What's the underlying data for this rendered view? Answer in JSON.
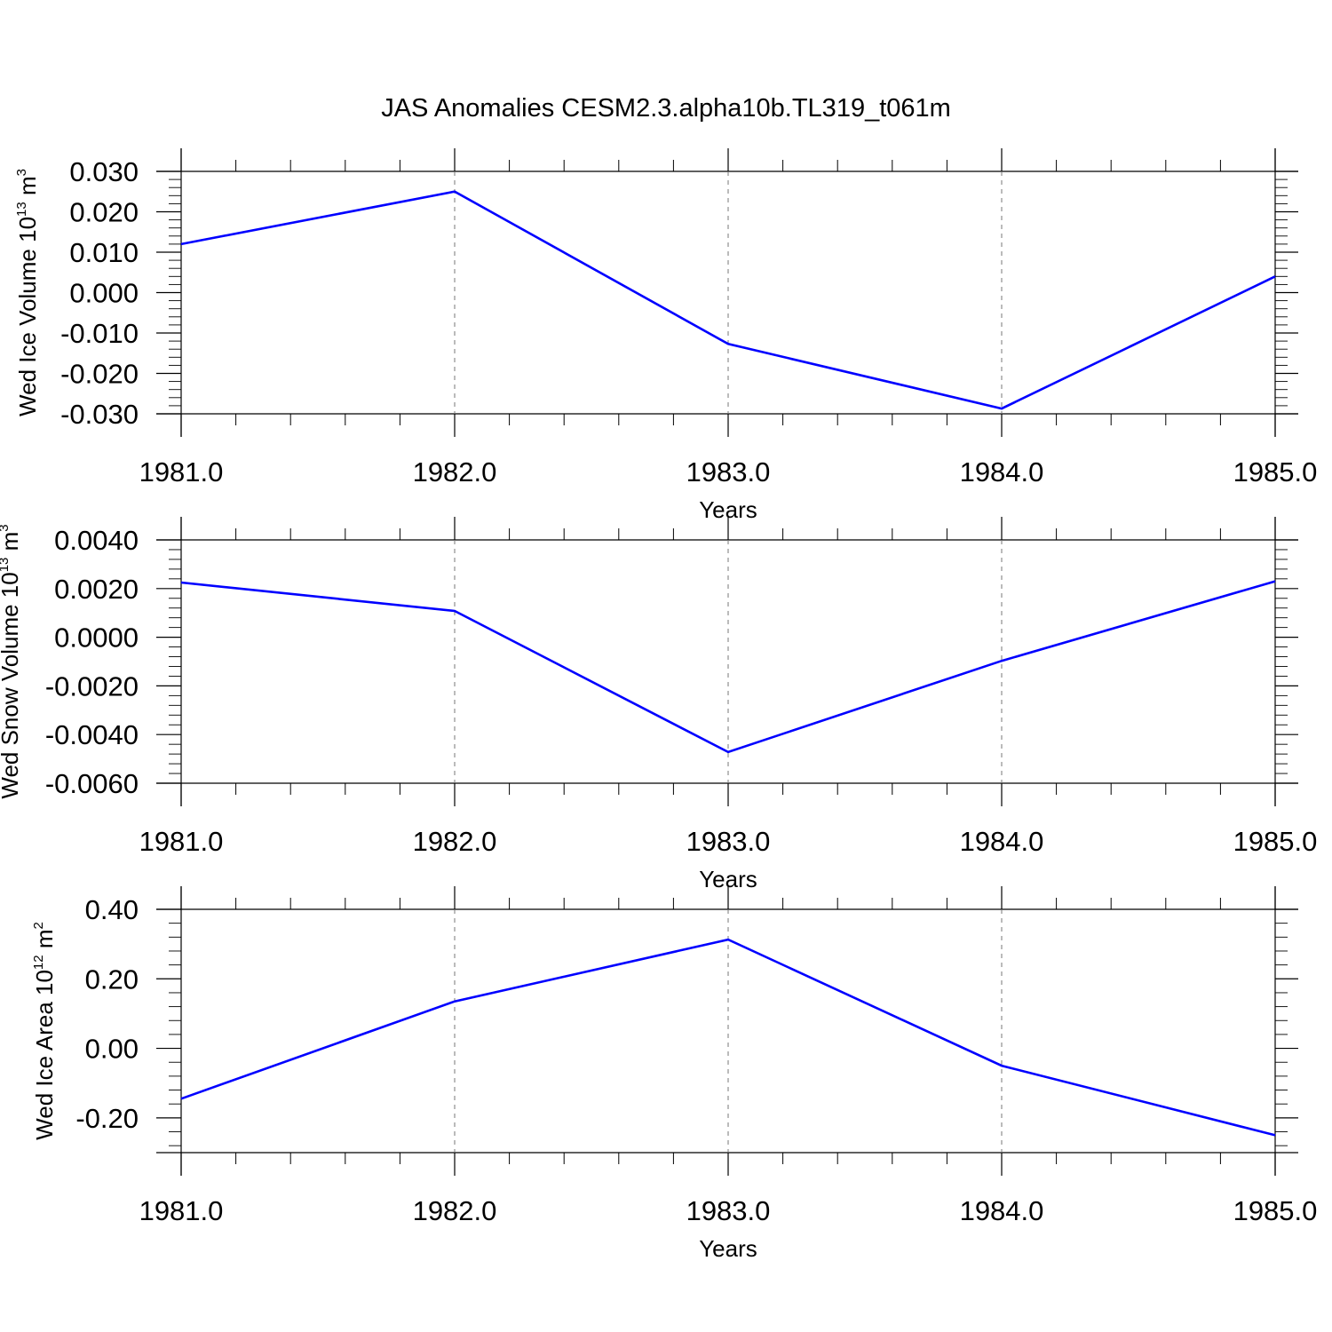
{
  "figure": {
    "title": "JAS Anomalies CESM2.3.alpha10b.TL319_t061m"
  },
  "chart_data": [
    {
      "type": "line",
      "title": "",
      "xlabel": "Years",
      "ylabel": {
        "text": "Wed Ice Volume 10",
        "sup": "13",
        "unit": " m",
        "unit_sup": "3"
      },
      "xlim": [
        1981,
        1985
      ],
      "ylim": [
        -0.03,
        0.03
      ],
      "x_ticks": [
        1981,
        1982,
        1983,
        1984,
        1985
      ],
      "x_tick_labels": [
        "1981.0",
        "1982.0",
        "1983.0",
        "1984.0",
        "1985.0"
      ],
      "y_ticks": [
        0.03,
        0.02,
        0.01,
        0.0,
        -0.01,
        -0.02,
        -0.03
      ],
      "y_tick_labels": [
        "0.030",
        "0.020",
        "0.010",
        "0.000",
        "-0.010",
        "-0.020",
        "-0.030"
      ],
      "y_minor_step": 0.002,
      "x_minor_step": 0.2,
      "grid": "vertical dashed at major x ticks",
      "color": "#0000ff",
      "x": [
        1981,
        1982,
        1983,
        1984,
        1985
      ],
      "y": [
        0.012,
        0.025,
        -0.0127,
        -0.0287,
        0.004
      ]
    },
    {
      "type": "line",
      "title": "",
      "xlabel": "Years",
      "ylabel": {
        "text": "Wed Snow Volume 10",
        "sup": "13",
        "unit": " m",
        "unit_sup": "3"
      },
      "xlim": [
        1981,
        1985
      ],
      "ylim": [
        -0.006,
        0.004
      ],
      "x_ticks": [
        1981,
        1982,
        1983,
        1984,
        1985
      ],
      "x_tick_labels": [
        "1981.0",
        "1982.0",
        "1983.0",
        "1984.0",
        "1985.0"
      ],
      "y_ticks": [
        0.004,
        0.002,
        0.0,
        -0.002,
        -0.004,
        -0.006
      ],
      "y_tick_labels": [
        "0.0040",
        "0.0020",
        "0.0000",
        "-0.0020",
        "-0.0040",
        "-0.0060"
      ],
      "y_minor_step": 0.0004,
      "x_minor_step": 0.2,
      "grid": "vertical dashed at major x ticks",
      "color": "#0000ff",
      "x": [
        1981,
        1982,
        1983,
        1984,
        1985
      ],
      "y": [
        0.00225,
        0.00108,
        -0.00472,
        -0.00097,
        0.0023
      ]
    },
    {
      "type": "line",
      "title": "",
      "xlabel": "Years",
      "ylabel": {
        "text": "Wed Ice Area 10",
        "sup": "12",
        "unit": " m",
        "unit_sup": "2"
      },
      "xlim": [
        1981,
        1985
      ],
      "ylim": [
        -0.3,
        0.4
      ],
      "x_ticks": [
        1981,
        1982,
        1983,
        1984,
        1985
      ],
      "x_tick_labels": [
        "1981.0",
        "1982.0",
        "1983.0",
        "1984.0",
        "1985.0"
      ],
      "y_ticks": [
        0.4,
        0.2,
        0.0,
        -0.2
      ],
      "y_tick_labels": [
        "0.40",
        "0.20",
        "0.00",
        "-0.20"
      ],
      "y_minor_step": 0.04,
      "x_minor_step": 0.2,
      "grid": "vertical dashed at major x ticks",
      "color": "#0000ff",
      "x": [
        1981,
        1982,
        1983,
        1984,
        1985
      ],
      "y": [
        -0.145,
        0.135,
        0.313,
        -0.05,
        -0.25
      ]
    }
  ]
}
